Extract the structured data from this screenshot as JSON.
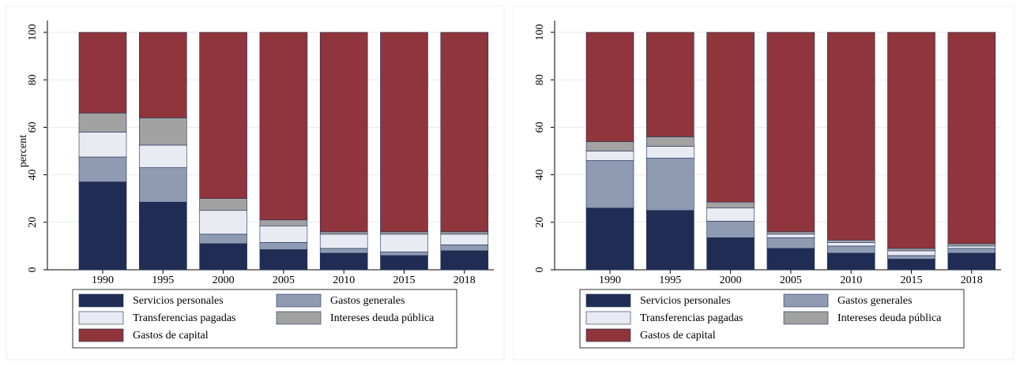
{
  "chart_data": [
    {
      "type": "stacked_bar",
      "y_label": "percent",
      "categories": [
        "1990",
        "1995",
        "2000",
        "2005",
        "2010",
        "2015",
        "2018"
      ],
      "ylim": [
        0,
        100
      ],
      "yticks": [
        0,
        20,
        40,
        60,
        80,
        100
      ],
      "grid": true,
      "series": [
        {
          "name": "Servicios personales",
          "color": "#1f2d55",
          "values": [
            37,
            28.5,
            11,
            8.5,
            7,
            6,
            8
          ]
        },
        {
          "name": "Gastos generales",
          "color": "#8f9bb3",
          "values": [
            10.5,
            14.5,
            4,
            3,
            2,
            1.5,
            2.5
          ]
        },
        {
          "name": "Transferencias pagadas",
          "color": "#e8ebf2",
          "values": [
            10.5,
            9.5,
            10,
            7,
            6,
            7.5,
            4.5
          ]
        },
        {
          "name": "Intereses deuda pública",
          "color": "#a2a2a2",
          "values": [
            8,
            11.5,
            5,
            2.5,
            1,
            1,
            1
          ]
        },
        {
          "name": "Gastos de capital",
          "color": "#90353b",
          "values": [
            34,
            36,
            70,
            79,
            84,
            84,
            84
          ]
        }
      ]
    },
    {
      "type": "stacked_bar",
      "categories": [
        "1990",
        "1995",
        "2000",
        "2005",
        "2010",
        "2015",
        "2018"
      ],
      "ylim": [
        0,
        100
      ],
      "yticks": [
        0,
        20,
        40,
        60,
        80,
        100
      ],
      "grid": true,
      "series": [
        {
          "name": "Servicios personales",
          "color": "#1f2d55",
          "values": [
            26,
            25,
            13.5,
            9,
            7,
            4.5,
            7
          ]
        },
        {
          "name": "Gastos generales",
          "color": "#8f9bb3",
          "values": [
            20,
            22,
            7,
            4.5,
            3,
            1.5,
            2
          ]
        },
        {
          "name": "Transferencias pagadas",
          "color": "#e8ebf2",
          "values": [
            4,
            5,
            5.5,
            1.5,
            1.5,
            2,
            1
          ]
        },
        {
          "name": "Intereses deuda pública",
          "color": "#a2a2a2",
          "values": [
            4,
            4,
            2.5,
            1,
            1,
            1,
            1
          ]
        },
        {
          "name": "Gastos de capital",
          "color": "#90353b",
          "values": [
            46,
            44,
            71.5,
            84,
            87.5,
            91,
            89
          ]
        }
      ]
    }
  ]
}
